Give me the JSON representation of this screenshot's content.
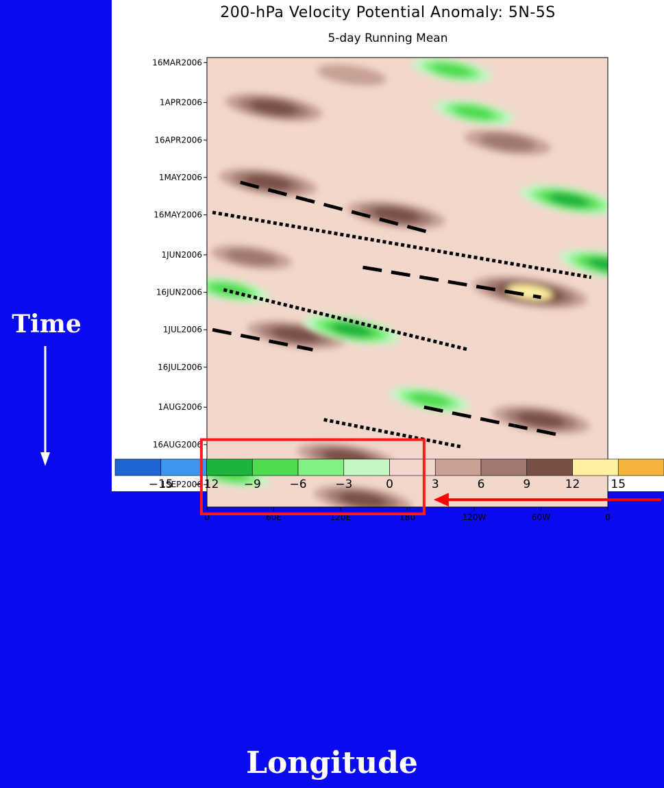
{
  "side_label": "Time",
  "bottom_label": "Longitude",
  "colors": {
    "background": "#0a0af0",
    "panel": "#ffffff",
    "highlight_box": "#ff1a1a",
    "arrow": "#ff0000",
    "annotation_lines": "#000000"
  },
  "chart_data": {
    "type": "heatmap",
    "title": "200-hPa Velocity Potential Anomaly: 5N-5S",
    "subtitle": "5-day Running Mean",
    "xlabel": "",
    "ylabel": "",
    "x_ticks": [
      "0",
      "60E",
      "120E",
      "180",
      "120W",
      "60W",
      "0"
    ],
    "x_tick_degrees_east": [
      0,
      60,
      120,
      180,
      240,
      300,
      360
    ],
    "y_ticks": [
      "16MAR2006",
      "1APR2006",
      "16APR2006",
      "1MAY2006",
      "16MAY2006",
      "1JUN2006",
      "16JUN2006",
      "1JUL2006",
      "16JUL2006",
      "1AUG2006",
      "16AUG2006",
      "1SEP2006"
    ],
    "y_range": [
      "14MAR2006",
      "10SEP2006"
    ],
    "y_direction": "time increases downward",
    "colorbar": {
      "levels": [
        -15,
        -12,
        -9,
        -6,
        -3,
        0,
        3,
        6,
        9,
        12,
        15
      ],
      "colors": [
        "#1e64d2",
        "#3c96f0",
        "#1eb43c",
        "#50dc50",
        "#82f082",
        "#c3f7c3",
        "#f2d7cc",
        "#c8a096",
        "#a07870",
        "#7a5046",
        "#fff0a0",
        "#f5b43c"
      ]
    },
    "anomalies": [
      {
        "sign": "positive",
        "lon": 130,
        "date": "21MAR2006",
        "max": 4
      },
      {
        "sign": "positive",
        "lon": 60,
        "date": "3APR2006",
        "max": 9
      },
      {
        "sign": "positive",
        "lon": 270,
        "date": "17APR2006",
        "max": 7
      },
      {
        "sign": "positive",
        "lon": 55,
        "date": "3MAY2006",
        "max": 9
      },
      {
        "sign": "positive",
        "lon": 170,
        "date": "16MAY2006",
        "max": 9
      },
      {
        "sign": "positive",
        "lon": 40,
        "date": "2JUN2006",
        "max": 6
      },
      {
        "sign": "positive",
        "lon": 290,
        "date": "16JUN2006",
        "max": 12
      },
      {
        "sign": "positive",
        "lon": 80,
        "date": "3JUL2006",
        "max": 9
      },
      {
        "sign": "positive",
        "lon": 300,
        "date": "6AUG2006",
        "max": 9
      },
      {
        "sign": "positive",
        "lon": 125,
        "date": "21AUG2006",
        "max": 9
      },
      {
        "sign": "positive",
        "lon": 140,
        "date": "7SEP2006",
        "max": 9
      },
      {
        "sign": "negative",
        "lon": 220,
        "date": "19MAR2006",
        "max": -6
      },
      {
        "sign": "negative",
        "lon": 240,
        "date": "5APR2006",
        "max": -6
      },
      {
        "sign": "negative",
        "lon": 325,
        "date": "10MAY2006",
        "max": -9
      },
      {
        "sign": "negative",
        "lon": 20,
        "date": "15JUN2006",
        "max": -6
      },
      {
        "sign": "negative",
        "lon": 130,
        "date": "1JUL2006",
        "max": -9
      },
      {
        "sign": "negative",
        "lon": 360,
        "date": "5JUN2006",
        "max": -9
      },
      {
        "sign": "negative",
        "lon": 200,
        "date": "29JUL2006",
        "max": -6
      },
      {
        "sign": "negative",
        "lon": 20,
        "date": "28AUG2006",
        "max": -6
      }
    ],
    "annotations": {
      "dashed_lines": [
        {
          "from": {
            "lon": 30,
            "date": "3MAY2006"
          },
          "to": {
            "lon": 200,
            "date": "23MAY2006"
          }
        },
        {
          "from": {
            "lon": 140,
            "date": "6JUN2006"
          },
          "to": {
            "lon": 300,
            "date": "18JUN2006"
          }
        },
        {
          "from": {
            "lon": 5,
            "date": "1JUL2006"
          },
          "to": {
            "lon": 95,
            "date": "9JUL2006"
          }
        },
        {
          "from": {
            "lon": 195,
            "date": "1AUG2006"
          },
          "to": {
            "lon": 315,
            "date": "12AUG2006"
          }
        }
      ],
      "dotted_lines": [
        {
          "from": {
            "lon": 5,
            "date": "15MAY2006"
          },
          "to": {
            "lon": 345,
            "date": "10JUN2006"
          }
        },
        {
          "from": {
            "lon": 15,
            "date": "15JUN2006"
          },
          "to": {
            "lon": 235,
            "date": "9JUL2006"
          }
        },
        {
          "from": {
            "lon": 105,
            "date": "6AUG2006"
          },
          "to": {
            "lon": 230,
            "date": "17AUG2006"
          }
        }
      ],
      "highlight_box": {
        "lon": [
          -5,
          195
        ],
        "date": [
          "14AUG2006",
          "10SEP2006"
        ]
      },
      "arrow": {
        "points_to": "highlight_box",
        "direction": "left"
      }
    }
  }
}
